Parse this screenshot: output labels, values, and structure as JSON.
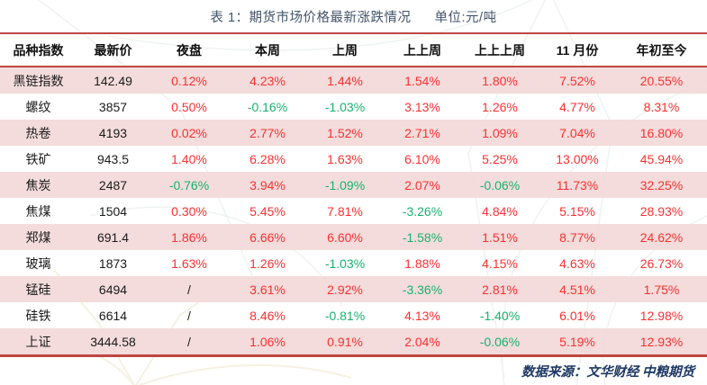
{
  "colors": {
    "rule_red": "#bf4743",
    "row_pink": "#f2d9d8",
    "up_red": "#fd2f2f",
    "down_green": "#17b26e",
    "title_slate": "#44546a",
    "footer_navy": "#1f3864",
    "header_text": "#111111"
  },
  "chart_data": {
    "type": "table",
    "title": "表 1：期货市场价格最新涨跌情况",
    "unit": "单位:元/吨",
    "columns": [
      "品种指数",
      "最新价",
      "夜盘",
      "本周",
      "上周",
      "上上周",
      "上上上周",
      "11 月份",
      "年初至今"
    ],
    "rows": [
      {
        "name": "黑链指数",
        "latest": "142.49",
        "changes": [
          {
            "v": "0.12%",
            "dir": "up"
          },
          {
            "v": "4.23%",
            "dir": "up"
          },
          {
            "v": "1.44%",
            "dir": "up"
          },
          {
            "v": "1.54%",
            "dir": "up"
          },
          {
            "v": "1.80%",
            "dir": "up"
          },
          {
            "v": "7.52%",
            "dir": "up"
          },
          {
            "v": "20.55%",
            "dir": "up"
          }
        ]
      },
      {
        "name": "螺纹",
        "latest": "3857",
        "changes": [
          {
            "v": "0.50%",
            "dir": "up"
          },
          {
            "v": "-0.16%",
            "dir": "down"
          },
          {
            "v": "-1.03%",
            "dir": "down"
          },
          {
            "v": "3.13%",
            "dir": "up"
          },
          {
            "v": "1.26%",
            "dir": "up"
          },
          {
            "v": "4.77%",
            "dir": "up"
          },
          {
            "v": "8.31%",
            "dir": "up"
          }
        ]
      },
      {
        "name": "热卷",
        "latest": "4193",
        "changes": [
          {
            "v": "0.02%",
            "dir": "up"
          },
          {
            "v": "2.77%",
            "dir": "up"
          },
          {
            "v": "1.52%",
            "dir": "up"
          },
          {
            "v": "2.71%",
            "dir": "up"
          },
          {
            "v": "1.09%",
            "dir": "up"
          },
          {
            "v": "7.04%",
            "dir": "up"
          },
          {
            "v": "16.80%",
            "dir": "up"
          }
        ]
      },
      {
        "name": "铁矿",
        "latest": "943.5",
        "changes": [
          {
            "v": "1.40%",
            "dir": "up"
          },
          {
            "v": "6.28%",
            "dir": "up"
          },
          {
            "v": "1.63%",
            "dir": "up"
          },
          {
            "v": "6.10%",
            "dir": "up"
          },
          {
            "v": "5.25%",
            "dir": "up"
          },
          {
            "v": "13.00%",
            "dir": "up"
          },
          {
            "v": "45.94%",
            "dir": "up"
          }
        ]
      },
      {
        "name": "焦炭",
        "latest": "2487",
        "changes": [
          {
            "v": "-0.76%",
            "dir": "down"
          },
          {
            "v": "3.94%",
            "dir": "up"
          },
          {
            "v": "-1.09%",
            "dir": "down"
          },
          {
            "v": "2.07%",
            "dir": "up"
          },
          {
            "v": "-0.06%",
            "dir": "down"
          },
          {
            "v": "11.73%",
            "dir": "up"
          },
          {
            "v": "32.25%",
            "dir": "up"
          }
        ]
      },
      {
        "name": "焦煤",
        "latest": "1504",
        "changes": [
          {
            "v": "0.30%",
            "dir": "up"
          },
          {
            "v": "5.45%",
            "dir": "up"
          },
          {
            "v": "7.81%",
            "dir": "up"
          },
          {
            "v": "-3.26%",
            "dir": "down"
          },
          {
            "v": "4.84%",
            "dir": "up"
          },
          {
            "v": "5.15%",
            "dir": "up"
          },
          {
            "v": "28.93%",
            "dir": "up"
          }
        ]
      },
      {
        "name": "郑煤",
        "latest": "691.4",
        "changes": [
          {
            "v": "1.86%",
            "dir": "up"
          },
          {
            "v": "6.66%",
            "dir": "up"
          },
          {
            "v": "6.60%",
            "dir": "up"
          },
          {
            "v": "-1.58%",
            "dir": "down"
          },
          {
            "v": "1.51%",
            "dir": "up"
          },
          {
            "v": "8.77%",
            "dir": "up"
          },
          {
            "v": "24.62%",
            "dir": "up"
          }
        ]
      },
      {
        "name": "玻璃",
        "latest": "1873",
        "changes": [
          {
            "v": "1.63%",
            "dir": "up"
          },
          {
            "v": "1.26%",
            "dir": "up"
          },
          {
            "v": "-1.03%",
            "dir": "down"
          },
          {
            "v": "1.88%",
            "dir": "up"
          },
          {
            "v": "4.15%",
            "dir": "up"
          },
          {
            "v": "4.63%",
            "dir": "up"
          },
          {
            "v": "26.73%",
            "dir": "up"
          }
        ]
      },
      {
        "name": "锰硅",
        "latest": "6494",
        "changes": [
          {
            "v": "/",
            "dir": "flat"
          },
          {
            "v": "3.61%",
            "dir": "up"
          },
          {
            "v": "2.92%",
            "dir": "up"
          },
          {
            "v": "-3.36%",
            "dir": "down"
          },
          {
            "v": "2.81%",
            "dir": "up"
          },
          {
            "v": "4.51%",
            "dir": "up"
          },
          {
            "v": "1.75%",
            "dir": "up"
          }
        ]
      },
      {
        "name": "硅铁",
        "latest": "6614",
        "changes": [
          {
            "v": "/",
            "dir": "flat"
          },
          {
            "v": "8.46%",
            "dir": "up"
          },
          {
            "v": "-0.81%",
            "dir": "down"
          },
          {
            "v": "4.13%",
            "dir": "up"
          },
          {
            "v": "-1.40%",
            "dir": "down"
          },
          {
            "v": "6.01%",
            "dir": "up"
          },
          {
            "v": "12.98%",
            "dir": "up"
          }
        ]
      },
      {
        "name": "上证",
        "latest": "3444.58",
        "changes": [
          {
            "v": "/",
            "dir": "flat"
          },
          {
            "v": "1.06%",
            "dir": "up"
          },
          {
            "v": "0.91%",
            "dir": "up"
          },
          {
            "v": "2.04%",
            "dir": "up"
          },
          {
            "v": "-0.06%",
            "dir": "down"
          },
          {
            "v": "5.19%",
            "dir": "up"
          },
          {
            "v": "12.93%",
            "dir": "up"
          }
        ]
      }
    ],
    "source": "数据来源：文华财经  中粮期货"
  }
}
